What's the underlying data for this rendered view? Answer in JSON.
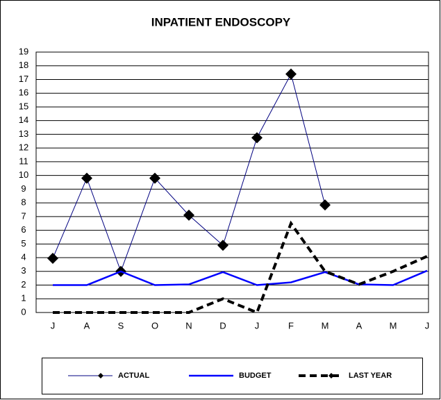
{
  "chart_data": {
    "type": "line",
    "title": "INPATIENT ENDOSCOPY",
    "categories": [
      "J",
      "A",
      "S",
      "O",
      "N",
      "D",
      "J",
      "F",
      "M",
      "A",
      "M",
      "J"
    ],
    "series": [
      {
        "name": "ACTUAL",
        "color": "#000080",
        "values": [
          3.95,
          9.8,
          3.0,
          9.8,
          7.1,
          4.9,
          12.75,
          17.4,
          7.85,
          null,
          null,
          null
        ]
      },
      {
        "name": "BUDGET",
        "color": "#0000ff",
        "values": [
          2,
          2,
          3,
          2,
          2.05,
          2.95,
          2,
          2.2,
          2.95,
          2.05,
          2,
          3.05
        ]
      },
      {
        "name": "LAST YEAR",
        "color": "#000000",
        "values": [
          0,
          0,
          0,
          0,
          0,
          1,
          0,
          6.5,
          3,
          2.05,
          3,
          4.1
        ]
      }
    ],
    "ylim": [
      0,
      19
    ],
    "yticks": [
      0,
      1,
      2,
      3,
      4,
      5,
      6,
      7,
      8,
      9,
      10,
      11,
      12,
      13,
      14,
      15,
      16,
      17,
      18,
      19
    ],
    "grid": true,
    "legend": "bottom"
  }
}
